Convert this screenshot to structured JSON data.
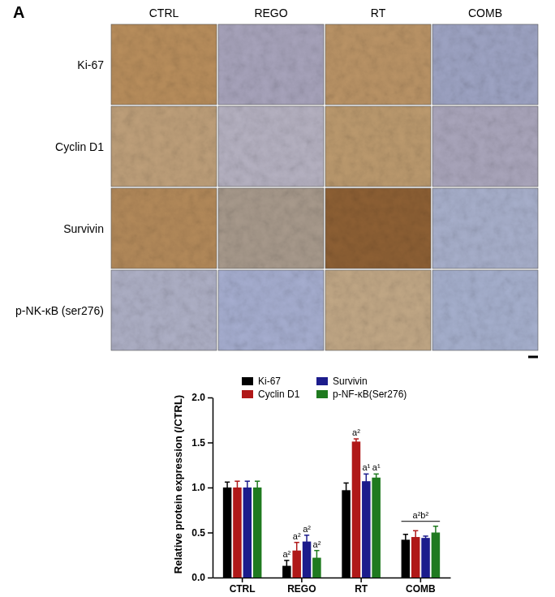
{
  "figure": {
    "panel_label": "A",
    "columns": [
      "CTRL",
      "REGO",
      "RT",
      "COMB"
    ],
    "rows": [
      "Ki-67",
      "Cyclin D1",
      "Survivin",
      "p-NK-κB (ser276)"
    ]
  },
  "chart_data": {
    "type": "bar",
    "ylabel": "Relative protein expression (/CTRL)",
    "categories": [
      "CTRL",
      "REGO",
      "RT",
      "COMB"
    ],
    "series": [
      {
        "name": "Ki-67",
        "color": "#000000",
        "values": [
          1.0,
          0.13,
          0.97,
          0.42
        ],
        "errors": [
          0.06,
          0.06,
          0.08,
          0.06
        ],
        "annotations": [
          null,
          "a²",
          null,
          null
        ]
      },
      {
        "name": "Cyclin D1",
        "color": "#b01818",
        "values": [
          1.0,
          0.3,
          1.51,
          0.45
        ],
        "errors": [
          0.07,
          0.09,
          0.03,
          0.07
        ],
        "annotations": [
          null,
          "a²",
          "a²",
          null
        ]
      },
      {
        "name": "Survivin",
        "color": "#1c1c8c",
        "values": [
          1.0,
          0.4,
          1.07,
          0.44
        ],
        "errors": [
          0.07,
          0.07,
          0.08,
          0.02
        ],
        "annotations": [
          null,
          "a²",
          "a¹",
          null
        ]
      },
      {
        "name": "p-NF-κB(Ser276)",
        "color": "#1f7a1f",
        "values": [
          1.0,
          0.22,
          1.11,
          0.5
        ],
        "errors": [
          0.07,
          0.08,
          0.04,
          0.07
        ],
        "annotations": [
          null,
          "a²",
          "a¹",
          null
        ]
      }
    ],
    "group_annotations": [
      null,
      null,
      null,
      "a²b²"
    ],
    "ylim": [
      0,
      2.0
    ],
    "yticks": [
      {
        "value": 0,
        "label": "0.0"
      },
      {
        "value": 0.5,
        "label": "0.5"
      },
      {
        "value": 1.0,
        "label": "1.0"
      },
      {
        "value": 1.5,
        "label": "1.5"
      },
      {
        "value": 2.0,
        "label": "2.0"
      }
    ],
    "legend": "top"
  }
}
